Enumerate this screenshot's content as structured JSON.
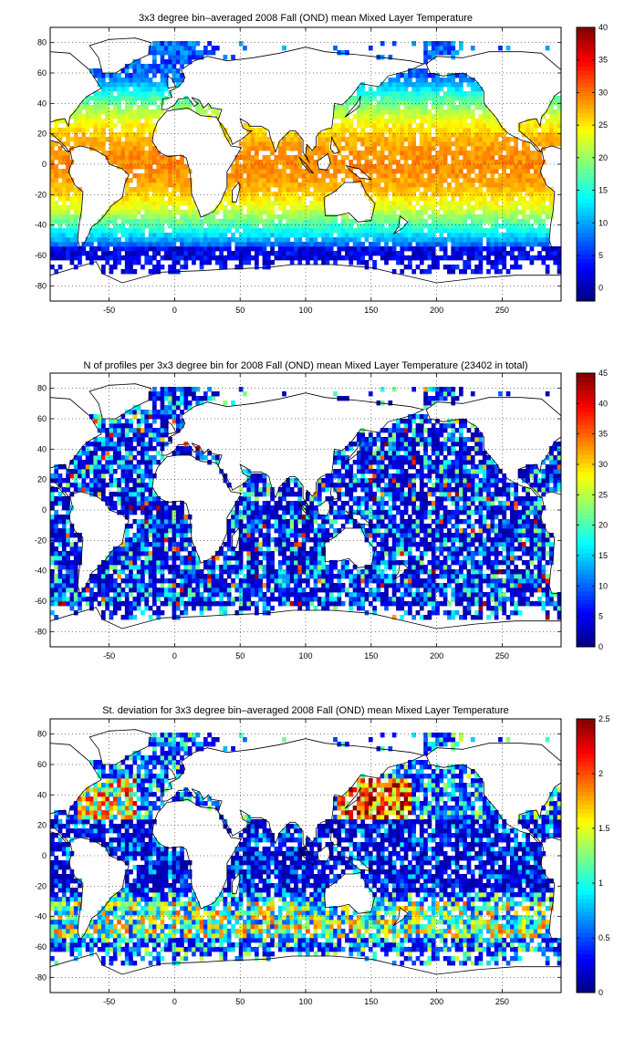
{
  "chart_data": [
    {
      "type": "heatmap",
      "title": "3x3 degree bin–averaged 2008 Fall (OND) mean Mixed Layer Temperature",
      "x_ticks": [
        -50,
        0,
        50,
        100,
        150,
        200,
        250
      ],
      "y_ticks": [
        -80,
        -60,
        -40,
        -20,
        0,
        20,
        40,
        60,
        80
      ],
      "xlim": [
        -95,
        295
      ],
      "ylim": [
        -90,
        90
      ],
      "colorbar_ticks": [
        0,
        5,
        10,
        15,
        20,
        25,
        30,
        35,
        40
      ],
      "clim": [
        -2,
        40
      ],
      "colormap": "jet",
      "grid": true,
      "bin_size_deg": 3,
      "field": "sst_like"
    },
    {
      "type": "heatmap",
      "title": "N of profiles per 3x3 degree bin for 2008 Fall (OND) mean Mixed Layer Temperature  (23402 in total)",
      "x_ticks": [
        -50,
        0,
        50,
        100,
        150,
        200,
        250
      ],
      "y_ticks": [
        -80,
        -60,
        -40,
        -20,
        0,
        20,
        40,
        60,
        80
      ],
      "xlim": [
        -95,
        295
      ],
      "ylim": [
        -90,
        90
      ],
      "colorbar_ticks": [
        0,
        5,
        10,
        15,
        20,
        25,
        30,
        35,
        40,
        45
      ],
      "clim": [
        0,
        45
      ],
      "colormap": "jet",
      "grid": true,
      "bin_size_deg": 3,
      "field": "count_like"
    },
    {
      "type": "heatmap",
      "title": "St. deviation for 3x3 degree bin–averaged 2008 Fall (OND) mean Mixed Layer Temperature",
      "x_ticks": [
        -50,
        0,
        50,
        100,
        150,
        200,
        250
      ],
      "y_ticks": [
        -80,
        -60,
        -40,
        -20,
        0,
        20,
        40,
        60,
        80
      ],
      "xlim": [
        -95,
        295
      ],
      "ylim": [
        -90,
        90
      ],
      "colorbar_ticks": [
        0,
        0.5,
        1,
        1.5,
        2,
        2.5
      ],
      "clim": [
        0,
        2.5
      ],
      "colormap": "jet",
      "grid": true,
      "bin_size_deg": 3,
      "field": "std_like"
    }
  ]
}
